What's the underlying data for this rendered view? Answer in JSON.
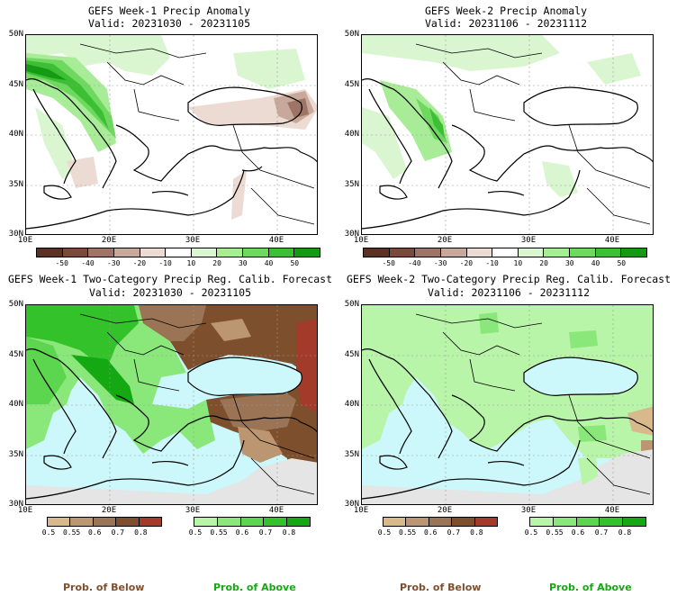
{
  "panels": [
    {
      "title": "GEFS Week-1 Precip Anomaly",
      "valid": "Valid: 20231030 - 20231105"
    },
    {
      "title": "GEFS Week-2 Precip Anomaly",
      "valid": "Valid: 20231106 - 20231112"
    },
    {
      "title": "GEFS Week-1 Two-Category Precip Reg. Calib. Forecast",
      "valid": "Valid: 20231030 - 20231105"
    },
    {
      "title": "GEFS Week-2 Two-Category Precip Reg. Calib. Forecast",
      "valid": "Valid: 20231106 - 20231112"
    }
  ],
  "axes": {
    "lat_labels": [
      "50N",
      "45N",
      "40N",
      "35N",
      "30N"
    ],
    "lon_labels": [
      "10E",
      "20E",
      "30E",
      "40E"
    ]
  },
  "anomaly_colorbar": {
    "labels": [
      "-50",
      "-40",
      "-30",
      "-20",
      "-10",
      "10",
      "20",
      "30",
      "40",
      "50"
    ],
    "colors": [
      "#5a3224",
      "#7a4b3a",
      "#9e7466",
      "#c8a89a",
      "#ecdbd2",
      "#ffffff",
      "#d9f6d0",
      "#a8ec98",
      "#6fd85e",
      "#3cbf34",
      "#159a16"
    ]
  },
  "below_colorbar": {
    "labels": [
      "0.5",
      "0.55",
      "0.6",
      "0.7",
      "0.8"
    ],
    "colors": [
      "#d8b98c",
      "#bc9670",
      "#9b7455",
      "#7d4f2d",
      "#a33a2a"
    ]
  },
  "above_colorbar": {
    "labels": [
      "0.5",
      "0.55",
      "0.6",
      "0.7",
      "0.8"
    ],
    "colors": [
      "#b8f5a8",
      "#8ae77a",
      "#5cd64e",
      "#33c22a",
      "#14a812"
    ]
  },
  "categories": {
    "below": "Prob. of Below",
    "above": "Prob. of Above"
  },
  "map_colors": {
    "sea_anomaly": "#ffffff",
    "sea_prob": "#ccf7fb",
    "no_data": "#e5e5e5",
    "border": "#000000",
    "grid": "#999999"
  }
}
